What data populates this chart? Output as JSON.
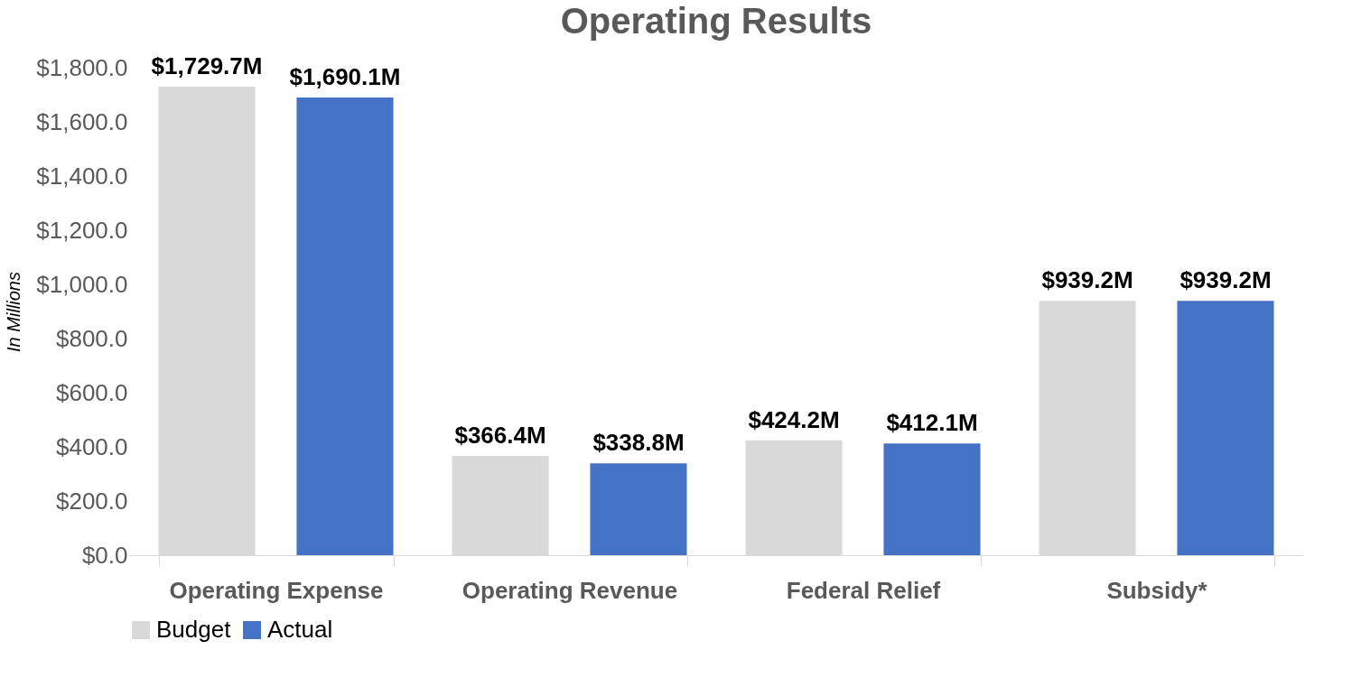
{
  "chart_data": {
    "type": "bar",
    "title": "Operating Results",
    "ylabel": "In Millions",
    "categories": [
      "Operating Expense",
      "Operating Revenue",
      "Federal Relief",
      "Subsidy*"
    ],
    "series": [
      {
        "name": "Budget",
        "color": "#d9d9d9",
        "values": [
          1729.7,
          366.4,
          424.2,
          939.2
        ],
        "value_labels": [
          "$1,729.7M",
          "$366.4M",
          "$424.2M",
          "$939.2M"
        ]
      },
      {
        "name": "Actual",
        "color": "#4472c4",
        "values": [
          1690.1,
          338.8,
          412.1,
          939.2
        ],
        "value_labels": [
          "$1,690.1M",
          "$338.8M",
          "$412.1M",
          "$939.2M"
        ]
      }
    ],
    "ylim": [
      0,
      1800
    ],
    "yticks": [
      {
        "value": 0,
        "label": "$0.0"
      },
      {
        "value": 200,
        "label": "$200.0"
      },
      {
        "value": 400,
        "label": "$400.0"
      },
      {
        "value": 600,
        "label": "$600.0"
      },
      {
        "value": 800,
        "label": "$800.0"
      },
      {
        "value": 1000,
        "label": "$1,000.0"
      },
      {
        "value": 1200,
        "label": "$1,200.0"
      },
      {
        "value": 1400,
        "label": "$1,400.0"
      },
      {
        "value": 1600,
        "label": "$1,600.0"
      },
      {
        "value": 1800,
        "label": "$1,800.0"
      }
    ],
    "legend": "bottom"
  }
}
